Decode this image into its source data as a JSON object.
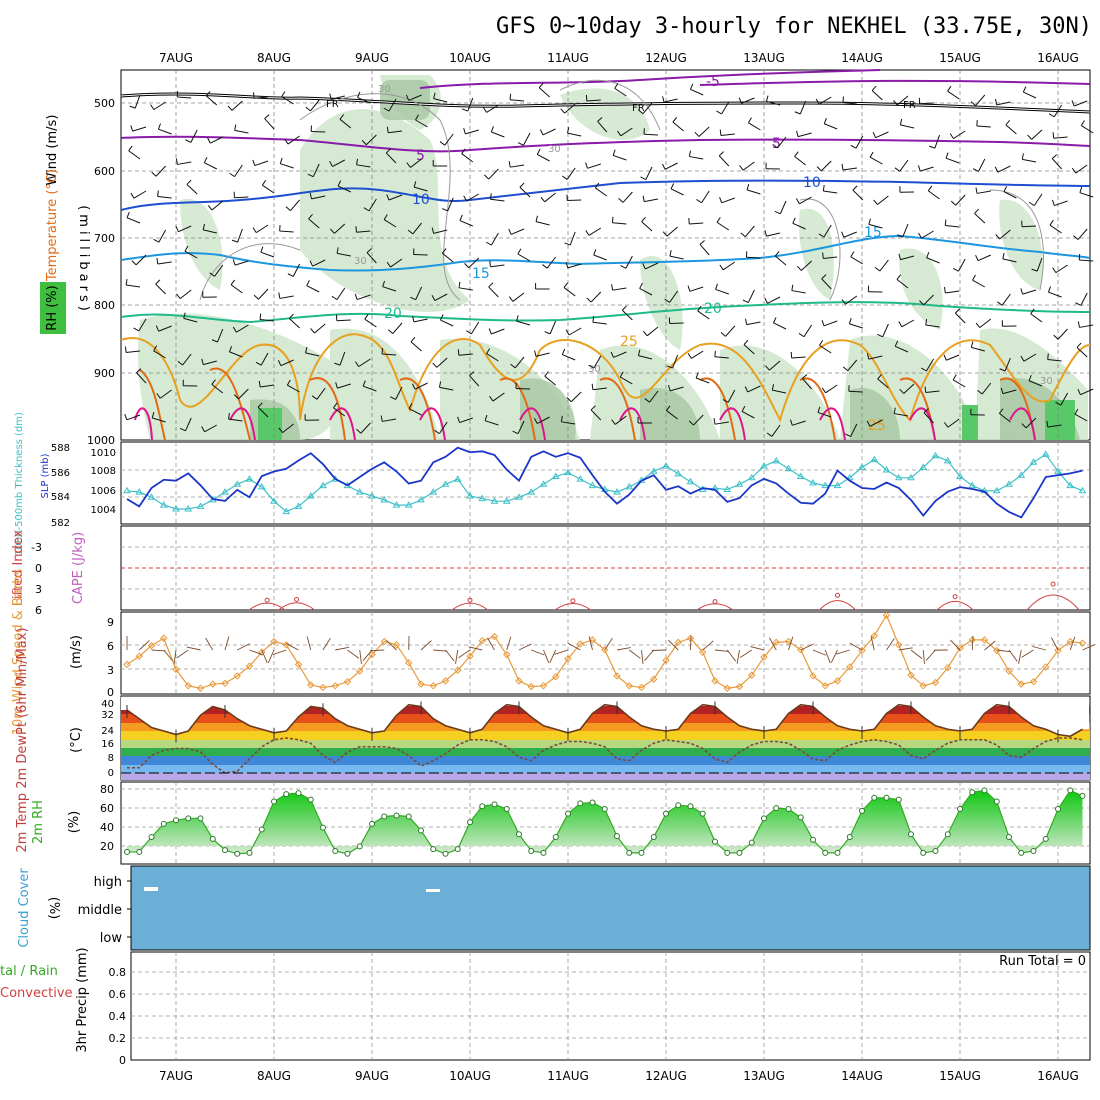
{
  "title": "GFS 0~10day 3-hourly for NEKHEL (33.75E, 30N)",
  "dates": [
    "7AUG",
    "8AUG",
    "9AUG",
    "10AUG",
    "11AUG",
    "12AUG",
    "13AUG",
    "14AUG",
    "15AUG",
    "16AUG"
  ],
  "colors": {
    "purple": "#8a1aa8",
    "blue": "#1f4fd0",
    "lightblue": "#1b96df",
    "teal": "#1fb98a",
    "orange": "#e8a020",
    "darkorange": "#e06b14",
    "magenta": "#e0148c",
    "rh_green": "#3fbf3f",
    "slp": "#1a36c8",
    "thick": "#3cc0c8",
    "lifted": "#d04040",
    "wind": "#e89a3a",
    "cloud": "#6baed6",
    "rh2m": "#33aa22"
  },
  "panels": {
    "upper": {
      "labels": {
        "wind": "Wind (m/s)",
        "temp": "Temperature (°C)",
        "rh": "RH (%)",
        "mb": "(millibars)"
      },
      "yticks": [
        "500",
        "600",
        "700",
        "800",
        "900",
        "1000"
      ],
      "contour_labels": {
        "fr": [
          "FR",
          "FR",
          "FR"
        ],
        "t5": [
          "-5",
          "5",
          "5"
        ],
        "t10": [
          "10",
          "10"
        ],
        "t15": [
          "15",
          "15"
        ],
        "t20": [
          "20",
          "20"
        ],
        "t25": [
          "25",
          "25"
        ],
        "rh30": [
          "30",
          "30",
          "30",
          "30",
          "30"
        ]
      }
    },
    "slp": {
      "label_thick": "1000-500mb Thickness (dm)",
      "label_slp": "SLP (mb)",
      "left_ticks": [
        "588",
        "586",
        "584",
        "582"
      ],
      "right_ticks": [
        "1010",
        "1008",
        "1006",
        "1004"
      ]
    },
    "li": {
      "label_li": "Lifted Index",
      "label_cape": "CAPE (J/kg)",
      "yticks": [
        "-3",
        "0",
        "3",
        "6"
      ]
    },
    "wind10": {
      "label": "10m Wind Speed & Barbs",
      "unit": "(m/s)",
      "yticks": [
        "9",
        "6",
        "3",
        "0"
      ]
    },
    "temp2m": {
      "label": "2m Temp 2m DewPt (6hr Min/Max)",
      "unit": "(°C)",
      "yticks": [
        "40",
        "32",
        "24",
        "16",
        "8",
        "0"
      ]
    },
    "rh2m": {
      "label": "2m RH",
      "unit": "(%)",
      "yticks": [
        "80",
        "60",
        "40",
        "20"
      ]
    },
    "cloud": {
      "label": "Cloud Cover",
      "unit": "(%)",
      "levels": [
        "high",
        "middle",
        "low"
      ]
    },
    "precip": {
      "label_total": "tal / Rain",
      "label_conv": "Convective",
      "unit": "3hr Precip (mm)",
      "run_total": "Run Total = 0",
      "yticks": [
        "0.8",
        "0.6",
        "0.4",
        "0.2",
        "0"
      ]
    }
  },
  "chart_data": [
    {
      "type": "line",
      "name": "sea level pressure",
      "title": "",
      "ylabel": "SLP (mb)",
      "ylim": [
        1002.5,
        1011
      ],
      "x_days": [
        6.5,
        6.625,
        6.75,
        6.875,
        7,
        7.125,
        7.25,
        7.375,
        7.5,
        7.625,
        7.75,
        7.875,
        8,
        8.125,
        8.25,
        8.375,
        8.5,
        8.625,
        8.75,
        8.875,
        9,
        9.125,
        9.25,
        9.375,
        9.5,
        9.625,
        9.75,
        9.875,
        10,
        10.125,
        10.25,
        10.375,
        10.5,
        10.625,
        10.75,
        10.875,
        11,
        11.125,
        11.25,
        11.375,
        11.5,
        11.625,
        11.75,
        11.875,
        12,
        12.125,
        12.25,
        12.375,
        12.5,
        12.625,
        12.75,
        12.875,
        13,
        13.125,
        13.25,
        13.375,
        13.5,
        13.625,
        13.75,
        13.875,
        14,
        14.125,
        14.25,
        14.375,
        14.5,
        14.625,
        14.75,
        14.875,
        15,
        15.125,
        15.25,
        15.375,
        15.5,
        15.625,
        15.75,
        15.875,
        16,
        16.125,
        16.25
      ],
      "values": [
        1005.0,
        1004.2,
        1006.2,
        1007.1,
        1007.0,
        1007.8,
        1006.5,
        1005.0,
        1004.8,
        1006.0,
        1005.2,
        1007.5,
        1008.0,
        1008.3,
        1009.2,
        1010.0,
        1008.8,
        1007.2,
        1006.5,
        1007.4,
        1008.3,
        1009.0,
        1008.0,
        1006.7,
        1007.0,
        1009.0,
        1009.6,
        1010.6,
        1010.1,
        1010.2,
        1009.8,
        1008.2,
        1007.0,
        1009.6,
        1010.2,
        1009.6,
        1010.0,
        1009.5,
        1007.6,
        1005.8,
        1004.5,
        1005.5,
        1007.0,
        1007.6,
        1006.0,
        1006.4,
        1005.6,
        1006.2,
        1006.0,
        1004.7,
        1005.1,
        1006.5,
        1007.2,
        1006.7,
        1005.6,
        1004.6,
        1004.5,
        1005.6,
        1008.1,
        1007.0,
        1006.2,
        1006.1,
        1006.8,
        1006.2,
        1004.9,
        1003.2,
        1004.8,
        1005.8,
        1006.3,
        1006.1,
        1005.8,
        1004.5,
        1003.6,
        1003.0,
        1005.1,
        1007.4,
        1007.6,
        1007.8,
        1008.1
      ]
    },
    {
      "type": "line",
      "name": "1000-500mb thickness",
      "title": "",
      "ylabel": "1000-500mb Thickness (dm)",
      "ylim": [
        582,
        588
      ],
      "x_days": [
        6.5,
        6.625,
        6.75,
        6.875,
        7,
        7.125,
        7.25,
        7.375,
        7.5,
        7.625,
        7.75,
        7.875,
        8,
        8.125,
        8.25,
        8.375,
        8.5,
        8.625,
        8.75,
        8.875,
        9,
        9.125,
        9.25,
        9.375,
        9.5,
        9.625,
        9.75,
        9.875,
        10,
        10.125,
        10.25,
        10.375,
        10.5,
        10.625,
        10.75,
        10.875,
        11,
        11.125,
        11.25,
        11.375,
        11.5,
        11.625,
        11.75,
        11.875,
        12,
        12.125,
        12.25,
        12.375,
        12.5,
        12.625,
        12.75,
        12.875,
        13,
        13.125,
        13.25,
        13.375,
        13.5,
        13.625,
        13.75,
        13.875,
        14,
        14.125,
        14.25,
        14.375,
        14.5,
        14.625,
        14.75,
        14.875,
        15,
        15.125,
        15.25,
        15.375,
        15.5,
        15.625,
        15.75,
        15.875,
        16,
        16.125,
        16.25
      ],
      "values": [
        584.4,
        584.3,
        583.9,
        583.3,
        583.0,
        583.0,
        583.2,
        583.7,
        584.3,
        584.9,
        585.3,
        584.7,
        583.6,
        582.8,
        583.2,
        584.0,
        584.8,
        585.3,
        584.8,
        584.3,
        584.0,
        583.7,
        583.3,
        583.3,
        583.7,
        584.3,
        584.9,
        585.3,
        584.0,
        583.8,
        583.6,
        583.6,
        583.9,
        584.3,
        584.9,
        585.5,
        585.8,
        585.3,
        584.8,
        584.5,
        584.3,
        584.7,
        585.2,
        585.9,
        586.3,
        585.7,
        585.1,
        584.5,
        584.6,
        584.5,
        584.9,
        585.4,
        586.3,
        586.7,
        586.1,
        585.5,
        585.0,
        584.8,
        584.8,
        585.4,
        586.2,
        586.8,
        586.0,
        585.4,
        585.4,
        586.2,
        587.1,
        586.7,
        585.5,
        584.8,
        584.4,
        584.4,
        584.9,
        585.6,
        586.6,
        587.2,
        585.9,
        584.8,
        584.4
      ]
    },
    {
      "type": "line",
      "name": "10m wind speed",
      "title": "",
      "ylabel": "(m/s)",
      "ylim": [
        0,
        10
      ],
      "x_days": [
        6.5,
        6.625,
        6.75,
        6.875,
        7,
        7.125,
        7.25,
        7.375,
        7.5,
        7.625,
        7.75,
        7.875,
        8,
        8.125,
        8.25,
        8.375,
        8.5,
        8.625,
        8.75,
        8.875,
        9,
        9.125,
        9.25,
        9.375,
        9.5,
        9.625,
        9.75,
        9.875,
        10,
        10.125,
        10.25,
        10.375,
        10.5,
        10.625,
        10.75,
        10.875,
        11,
        11.125,
        11.25,
        11.375,
        11.5,
        11.625,
        11.75,
        11.875,
        12,
        12.125,
        12.25,
        12.375,
        12.5,
        12.625,
        12.75,
        12.875,
        13,
        13.125,
        13.25,
        13.375,
        13.5,
        13.625,
        13.75,
        13.875,
        14,
        14.125,
        14.25,
        14.375,
        14.5,
        14.625,
        14.75,
        14.875,
        15,
        15.125,
        15.25,
        15.375,
        15.5,
        15.625,
        15.75,
        15.875,
        16,
        16.125,
        16.25
      ],
      "values": [
        3.6,
        4.6,
        5.9,
        6.8,
        3.0,
        1.0,
        0.7,
        1.2,
        1.3,
        2.2,
        3.4,
        5.1,
        6.4,
        6.0,
        3.6,
        1.1,
        0.8,
        1.0,
        1.5,
        2.8,
        4.8,
        6.4,
        6.0,
        3.8,
        1.2,
        1.0,
        1.6,
        2.9,
        4.6,
        6.5,
        7.0,
        4.8,
        1.6,
        0.9,
        1.0,
        2.1,
        4.3,
        6.1,
        6.6,
        5.4,
        2.2,
        1.0,
        0.8,
        1.8,
        4.1,
        6.3,
        6.8,
        5.1,
        1.6,
        0.7,
        0.9,
        2.3,
        4.5,
        6.3,
        6.4,
        5.4,
        2.2,
        1.0,
        1.6,
        3.3,
        5.3,
        7.1,
        9.6,
        6.0,
        2.3,
        1.0,
        1.4,
        3.2,
        5.6,
        6.6,
        6.6,
        5.3,
        2.8,
        1.2,
        1.5,
        3.3,
        5.3,
        6.4,
        6.2
      ]
    },
    {
      "type": "line",
      "name": "2m relative humidity",
      "title": "",
      "ylabel": "(%)",
      "ylim": [
        0,
        90
      ],
      "x_days": [
        6.5,
        6.625,
        6.75,
        6.875,
        7,
        7.125,
        7.25,
        7.375,
        7.5,
        7.625,
        7.75,
        7.875,
        8,
        8.125,
        8.25,
        8.375,
        8.5,
        8.625,
        8.75,
        8.875,
        9,
        9.125,
        9.25,
        9.375,
        9.5,
        9.625,
        9.75,
        9.875,
        10,
        10.125,
        10.25,
        10.375,
        10.5,
        10.625,
        10.75,
        10.875,
        11,
        11.125,
        11.25,
        11.375,
        11.5,
        11.625,
        11.75,
        11.875,
        12,
        12.125,
        12.25,
        12.375,
        12.5,
        12.625,
        12.75,
        12.875,
        13,
        13.125,
        13.25,
        13.375,
        13.5,
        13.625,
        13.75,
        13.875,
        14,
        14.125,
        14.25,
        14.375,
        14.5,
        14.625,
        14.75,
        14.875,
        15,
        15.125,
        15.25,
        15.375,
        15.5,
        15.625,
        15.75,
        15.875,
        16,
        16.125,
        16.25
      ],
      "values": [
        14,
        14,
        30,
        44,
        48,
        50,
        50,
        28,
        16,
        12,
        13,
        38,
        68,
        76,
        77,
        70,
        40,
        15,
        12,
        20,
        44,
        52,
        53,
        52,
        37,
        17,
        12,
        17,
        46,
        63,
        65,
        60,
        33,
        15,
        13,
        30,
        55,
        66,
        67,
        60,
        31,
        13,
        13,
        30,
        55,
        64,
        63,
        55,
        25,
        13,
        13,
        24,
        50,
        61,
        60,
        51,
        27,
        13,
        13,
        30,
        58,
        72,
        72,
        70,
        33,
        13,
        15,
        33,
        60,
        78,
        80,
        68,
        30,
        13,
        15,
        28,
        60,
        80,
        74
      ]
    },
    {
      "type": "area",
      "name": "2m temperature",
      "title": "",
      "ylabel": "(°C)",
      "ylim": [
        -4,
        44
      ],
      "x_days": [
        6.5,
        6.625,
        6.75,
        6.875,
        7,
        7.125,
        7.25,
        7.375,
        7.5,
        7.625,
        7.75,
        7.875,
        8,
        8.125,
        8.25,
        8.375,
        8.5,
        8.625,
        8.75,
        8.875,
        9,
        9.125,
        9.25,
        9.375,
        9.5,
        9.625,
        9.75,
        9.875,
        10,
        10.125,
        10.25,
        10.375,
        10.5,
        10.625,
        10.75,
        10.875,
        11,
        11.125,
        11.25,
        11.375,
        11.5,
        11.625,
        11.75,
        11.875,
        12,
        12.125,
        12.25,
        12.375,
        12.5,
        12.625,
        12.75,
        12.875,
        13,
        13.125,
        13.25,
        13.375,
        13.5,
        13.625,
        13.75,
        13.875,
        14,
        14.125,
        14.25,
        14.375,
        14.5,
        14.625,
        14.75,
        14.875,
        15,
        15.125,
        15.25,
        15.375,
        15.5,
        15.625,
        15.75,
        15.875,
        16,
        16.125,
        16.25
      ],
      "values": [
        36,
        31,
        26,
        24,
        22,
        24,
        33,
        38,
        36,
        31,
        27,
        25,
        23,
        24,
        32,
        38,
        37,
        31,
        27,
        25,
        23,
        24,
        33,
        39,
        38,
        31,
        27,
        25,
        23,
        25,
        34,
        39,
        38,
        32,
        27,
        25,
        23,
        25,
        34,
        39,
        38,
        32,
        27,
        25,
        24,
        25,
        34,
        39,
        38,
        32,
        27,
        25,
        24,
        25,
        34,
        39,
        38,
        32,
        27,
        25,
        24,
        25,
        34,
        39,
        38,
        32,
        27,
        25,
        24,
        25,
        34,
        39,
        38,
        32,
        27,
        25,
        22,
        21,
        25
      ]
    },
    {
      "type": "line",
      "name": "2m dew point",
      "title": "",
      "ylabel": "(°C)",
      "ylim": [
        -4,
        44
      ],
      "x_days": [
        6.5,
        6.625,
        6.75,
        6.875,
        7,
        7.125,
        7.25,
        7.375,
        7.5,
        7.625,
        7.75,
        7.875,
        8,
        8.125,
        8.25,
        8.375,
        8.5,
        8.625,
        8.75,
        8.875,
        9,
        9.125,
        9.25,
        9.375,
        9.5,
        9.625,
        9.75,
        9.875,
        10,
        10.125,
        10.25,
        10.375,
        10.5,
        10.625,
        10.75,
        10.875,
        11,
        11.125,
        11.25,
        11.375,
        11.5,
        11.625,
        11.75,
        11.875,
        12,
        12.125,
        12.25,
        12.375,
        12.5,
        12.625,
        12.75,
        12.875,
        13,
        13.125,
        13.25,
        13.375,
        13.5,
        13.625,
        13.75,
        13.875,
        14,
        14.125,
        14.25,
        14.375,
        14.5,
        14.625,
        14.75,
        14.875,
        15,
        15.125,
        15.25,
        15.375,
        15.5,
        15.625,
        15.75,
        15.875,
        16,
        16.125,
        16.25
      ],
      "values": [
        3,
        3,
        10,
        13,
        14,
        14,
        12,
        5,
        0,
        1,
        8,
        15,
        19,
        20,
        19,
        17,
        10,
        6,
        12,
        15,
        15,
        15,
        14,
        10,
        4,
        7,
        11,
        16,
        19,
        19,
        18,
        15,
        9,
        7,
        13,
        16,
        18,
        18,
        17,
        15,
        8,
        7,
        13,
        17,
        19,
        18,
        17,
        14,
        8,
        6,
        12,
        16,
        18,
        18,
        17,
        13,
        8,
        7,
        13,
        16,
        18,
        19,
        18,
        16,
        10,
        8,
        13,
        17,
        19,
        19,
        19,
        16,
        10,
        9,
        14,
        18,
        20,
        20,
        19
      ]
    },
    {
      "type": "line",
      "name": "lifted index",
      "title": "",
      "ylabel": "Lifted Index",
      "ylim": [
        -6,
        6
      ],
      "x_days": [
        7.93,
        8.23,
        10.0,
        11.05,
        12.5,
        13.75,
        14.95,
        15.95
      ],
      "values": [
        4.6,
        4.5,
        4.6,
        4.7,
        4.8,
        3.9,
        4.1,
        2.3
      ]
    },
    {
      "type": "area",
      "name": "3hr precipitation",
      "title": "",
      "ylabel": "3hr Precip (mm)",
      "ylim": [
        0,
        1
      ],
      "x_days": [
        6.5,
        16.25
      ],
      "values": [
        0,
        0
      ]
    }
  ]
}
